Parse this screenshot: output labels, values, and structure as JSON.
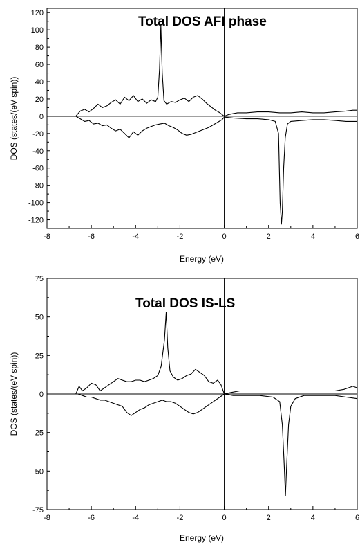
{
  "chart_data": [
    {
      "type": "line",
      "title": "Total DOS AFI phase",
      "xlabel": "Energy (eV)",
      "ylabel": "DOS (states/(eV spin))",
      "xlim": [
        -8,
        6
      ],
      "ylim": [
        -130,
        125
      ],
      "xticks": [
        -8,
        -6,
        -4,
        -2,
        0,
        2,
        4,
        6
      ],
      "yticks": [
        -120,
        -100,
        -80,
        -60,
        -40,
        -20,
        0,
        20,
        40,
        60,
        80,
        100,
        120
      ],
      "grid": false,
      "series": [
        {
          "x": [
            -8.0,
            -6.7,
            -6.5,
            -6.3,
            -6.1,
            -5.9,
            -5.7,
            -5.5,
            -5.3,
            -5.1,
            -4.9,
            -4.7,
            -4.5,
            -4.3,
            -4.1,
            -3.9,
            -3.7,
            -3.5,
            -3.3,
            -3.1,
            -3.0,
            -2.92,
            -2.86,
            -2.8,
            -2.72,
            -2.6,
            -2.4,
            -2.2,
            -2.0,
            -1.8,
            -1.6,
            -1.4,
            -1.2,
            -1.0,
            -0.8,
            -0.6,
            -0.4,
            -0.2,
            0.0,
            0.2,
            0.4,
            0.6,
            1.0,
            1.5,
            2.0,
            2.5,
            3.0,
            3.5,
            4.0,
            4.5,
            5.0,
            5.5,
            5.8,
            6.0
          ],
          "y": [
            0,
            0,
            6,
            8,
            5,
            9,
            14,
            10,
            12,
            16,
            19,
            14,
            22,
            18,
            24,
            17,
            20,
            15,
            19,
            17,
            22,
            55,
            105,
            50,
            18,
            14,
            17,
            16,
            19,
            21,
            17,
            22,
            24,
            20,
            15,
            11,
            7,
            4,
            0,
            2,
            3,
            4,
            4,
            5,
            5,
            4,
            4,
            5,
            4,
            4,
            5,
            6,
            7,
            7
          ]
        },
        {
          "x": [
            -8.0,
            -6.7,
            -6.5,
            -6.3,
            -6.1,
            -5.9,
            -5.7,
            -5.5,
            -5.3,
            -5.1,
            -4.9,
            -4.7,
            -4.5,
            -4.3,
            -4.1,
            -3.9,
            -3.7,
            -3.5,
            -3.3,
            -3.1,
            -2.9,
            -2.7,
            -2.5,
            -2.3,
            -2.1,
            -1.9,
            -1.7,
            -1.5,
            -1.3,
            -1.1,
            -0.9,
            -0.7,
            -0.5,
            -0.3,
            -0.1,
            0.0,
            0.4,
            1.0,
            1.5,
            2.0,
            2.3,
            2.45,
            2.52,
            2.58,
            2.62,
            2.68,
            2.75,
            2.85,
            3.0,
            3.5,
            4.0,
            4.5,
            5.0,
            5.5,
            6.0
          ],
          "y": [
            0,
            0,
            -3,
            -6,
            -5,
            -9,
            -8,
            -11,
            -10,
            -14,
            -17,
            -15,
            -20,
            -25,
            -18,
            -22,
            -17,
            -14,
            -12,
            -10,
            -9,
            -8,
            -11,
            -13,
            -16,
            -20,
            -22,
            -21,
            -19,
            -17,
            -15,
            -13,
            -10,
            -7,
            -4,
            -1,
            -2,
            -3,
            -3,
            -4,
            -6,
            -20,
            -100,
            -125,
            -110,
            -60,
            -25,
            -9,
            -6,
            -5,
            -4,
            -4,
            -5,
            -6,
            -6
          ]
        }
      ]
    },
    {
      "type": "line",
      "title": "Total DOS IS-LS",
      "xlabel": "Energy (eV)",
      "ylabel": "DOS (states/(eV spin))",
      "xlim": [
        -8,
        6
      ],
      "ylim": [
        -75,
        75
      ],
      "xticks": [
        -8,
        -6,
        -4,
        -2,
        0,
        2,
        4,
        6
      ],
      "yticks": [
        -75,
        -50,
        -25,
        0,
        25,
        50,
        75
      ],
      "grid": false,
      "series": [
        {
          "x": [
            -8.0,
            -6.7,
            -6.55,
            -6.4,
            -6.2,
            -6.0,
            -5.8,
            -5.6,
            -5.4,
            -5.2,
            -5.0,
            -4.8,
            -4.6,
            -4.4,
            -4.2,
            -4.0,
            -3.8,
            -3.6,
            -3.4,
            -3.2,
            -3.0,
            -2.85,
            -2.7,
            -2.62,
            -2.55,
            -2.45,
            -2.3,
            -2.1,
            -1.9,
            -1.7,
            -1.5,
            -1.3,
            -1.1,
            -0.9,
            -0.7,
            -0.5,
            -0.3,
            -0.15,
            0.0,
            0.3,
            0.7,
            1.2,
            1.8,
            2.5,
            3.0,
            3.5,
            4.0,
            4.5,
            5.0,
            5.4,
            5.8,
            6.0
          ],
          "y": [
            0,
            0,
            5,
            2,
            4,
            7,
            6,
            2,
            4,
            6,
            8,
            10,
            9,
            8,
            8,
            9,
            9,
            8,
            9,
            10,
            12,
            18,
            35,
            53,
            30,
            15,
            11,
            9,
            10,
            12,
            13,
            16,
            14,
            12,
            8,
            7,
            9,
            6,
            0,
            1,
            2,
            2,
            2,
            2,
            2,
            2,
            2,
            2,
            2,
            3,
            5,
            4
          ]
        },
        {
          "x": [
            -8.0,
            -6.6,
            -6.4,
            -6.2,
            -6.0,
            -5.8,
            -5.6,
            -5.4,
            -5.2,
            -5.0,
            -4.8,
            -4.6,
            -4.4,
            -4.2,
            -4.0,
            -3.8,
            -3.6,
            -3.4,
            -3.2,
            -3.0,
            -2.8,
            -2.6,
            -2.4,
            -2.2,
            -2.0,
            -1.8,
            -1.6,
            -1.4,
            -1.2,
            -1.0,
            -0.8,
            -0.6,
            -0.4,
            -0.2,
            0.0,
            0.4,
            1.0,
            1.6,
            2.2,
            2.5,
            2.62,
            2.7,
            2.76,
            2.82,
            2.9,
            3.0,
            3.2,
            3.6,
            4.0,
            4.5,
            5.0,
            5.5,
            6.0
          ],
          "y": [
            0,
            0,
            -1,
            -2,
            -2,
            -3,
            -4,
            -4,
            -5,
            -6,
            -7,
            -8,
            -12,
            -14,
            -12,
            -10,
            -9,
            -7,
            -6,
            -5,
            -4,
            -5,
            -5,
            -6,
            -8,
            -10,
            -12,
            -13,
            -12,
            -10,
            -8,
            -6,
            -4,
            -2,
            0,
            -1,
            -1,
            -1,
            -2,
            -5,
            -20,
            -45,
            -66,
            -45,
            -20,
            -8,
            -3,
            -1,
            -1,
            -1,
            -1,
            -2,
            -3
          ]
        }
      ]
    }
  ]
}
